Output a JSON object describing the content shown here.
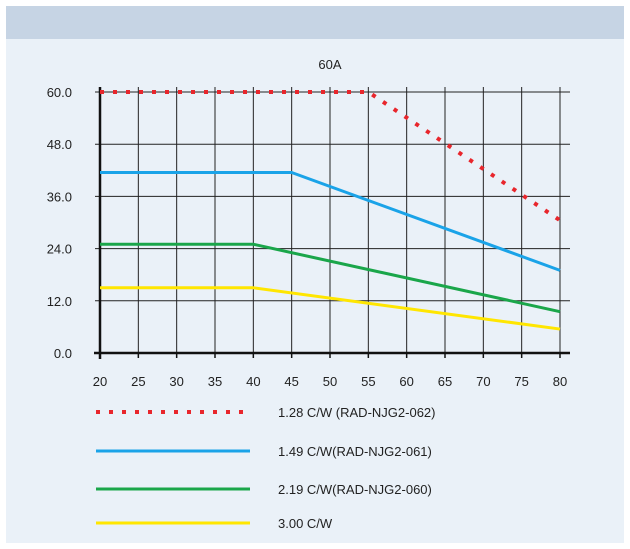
{
  "chart_data": {
    "type": "line",
    "title": "60A",
    "xlabel": "",
    "ylabel": "",
    "xlim": [
      20,
      80
    ],
    "ylim": [
      0,
      60
    ],
    "x_ticks": [
      "20",
      "25",
      "30",
      "35",
      "40",
      "45",
      "50",
      "55",
      "60",
      "65",
      "70",
      "75",
      "80"
    ],
    "y_ticks": [
      "0.0",
      "12.0",
      "24.0",
      "36.0",
      "48.0",
      "60.0"
    ],
    "grid": true,
    "legend_position": "bottom",
    "series": [
      {
        "name": "1.28 C/W  (RAD-NJG2-062)",
        "color": "#e8262c",
        "style": "dotted",
        "x": [
          20,
          55,
          80
        ],
        "y": [
          60,
          60,
          30.5
        ]
      },
      {
        "name": "1.49 C/W(RAD-NJG2-061)",
        "color": "#1aa3e8",
        "style": "solid",
        "x": [
          20,
          45,
          80
        ],
        "y": [
          41.5,
          41.5,
          19
        ]
      },
      {
        "name": "2.19 C/W(RAD-NJG2-060)",
        "color": "#1aa64a",
        "style": "solid",
        "x": [
          20,
          40,
          80
        ],
        "y": [
          25,
          25,
          9.5
        ]
      },
      {
        "name": "3.00 C/W",
        "color": "#ffe600",
        "style": "solid",
        "x": [
          20,
          40,
          80
        ],
        "y": [
          15,
          15,
          5.5
        ]
      }
    ]
  }
}
